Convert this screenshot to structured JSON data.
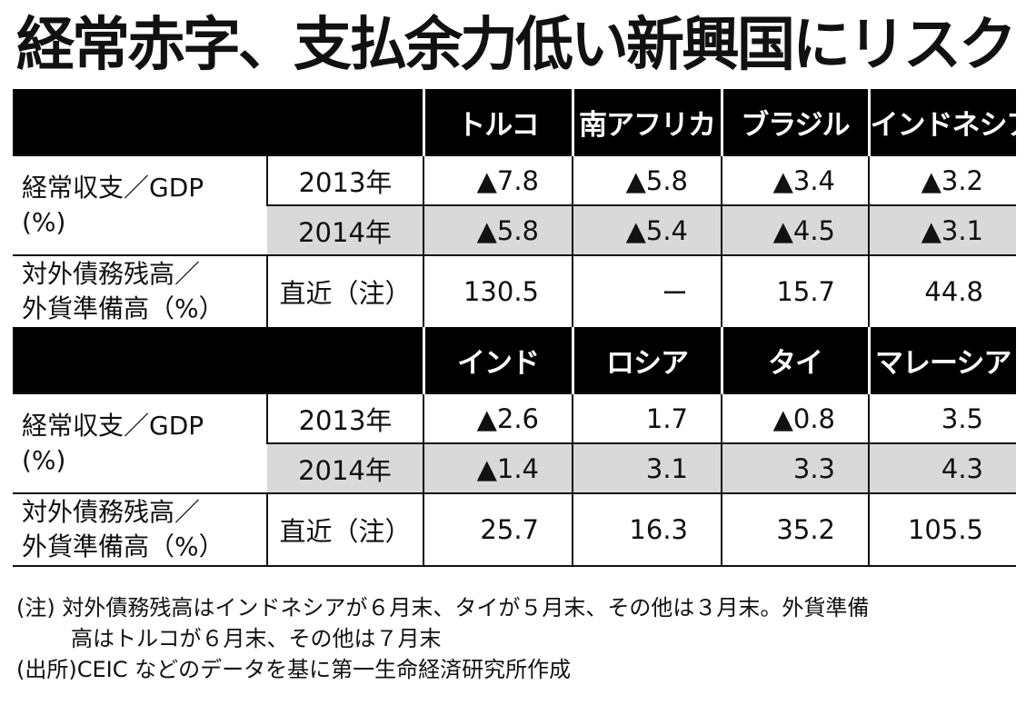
{
  "title": "経常赤字、支払余力低い新興国にリスク",
  "labels": {
    "ca_line1": "経常収支／GDP",
    "ca_line2": "(%)",
    "debt_line1": "対外債務残高／",
    "debt_line2": "外貨準備高（%）",
    "year_2013": "2013年",
    "year_2014": "2014年",
    "recent": "直近（注）"
  },
  "group1": {
    "countries": [
      "トルコ",
      "南アフリカ",
      "ブラジル",
      "インドネシア"
    ],
    "ca_2013": [
      "▲7.8",
      "▲5.8",
      "▲3.4",
      "▲3.2"
    ],
    "ca_2014": [
      "▲5.8",
      "▲5.4",
      "▲4.5",
      "▲3.1"
    ],
    "debt": [
      "130.5",
      "ー",
      "15.7",
      "44.8"
    ]
  },
  "group2": {
    "countries": [
      "インド",
      "ロシア",
      "タイ",
      "マレーシア"
    ],
    "ca_2013": [
      "▲2.6",
      "1.7",
      "▲0.8",
      "3.5"
    ],
    "ca_2014": [
      "▲1.4",
      "3.1",
      "3.3",
      "4.3"
    ],
    "debt": [
      "25.7",
      "16.3",
      "35.2",
      "105.5"
    ]
  },
  "notes": {
    "note_line1": "(注) 対外債務残高はインドネシアが６月末、タイが５月末、その他は３月末。外貨準備",
    "note_line2": "高はトルコが６月末、その他は７月末",
    "source": "(出所)CEIC などのデータを基に第一生命経済研究所作成"
  }
}
